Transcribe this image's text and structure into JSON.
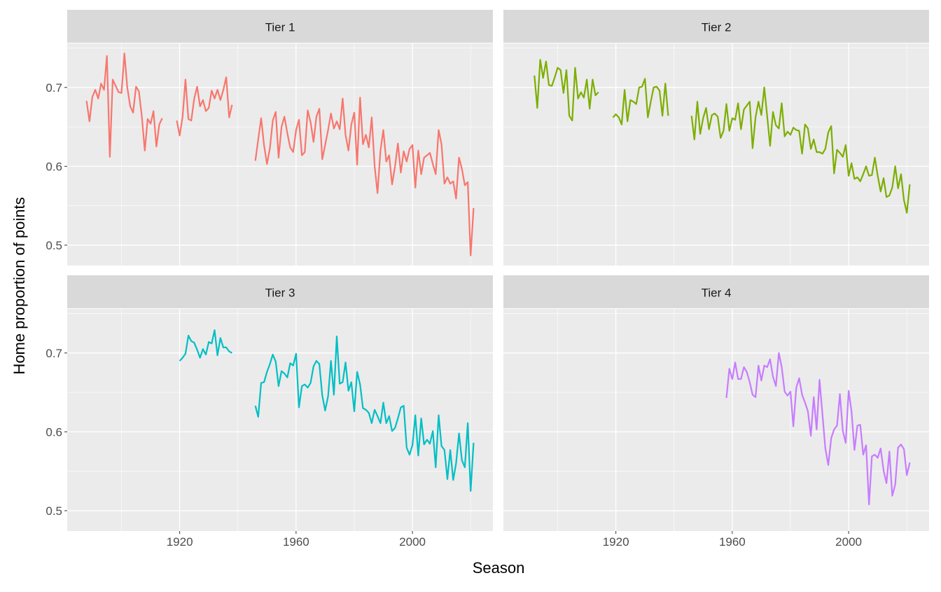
{
  "chart_data": {
    "type": "line",
    "layout": "facet_wrap 2x2",
    "xlabel": "Season",
    "ylabel": "Home proportion of points",
    "x_ticks": [
      1920,
      1960,
      2000
    ],
    "y_ticks": [
      0.5,
      0.6,
      0.7
    ],
    "grid": true,
    "legend": "none",
    "facets": [
      {
        "name": "Tier 1",
        "color": "#F8766D",
        "segments": [
          {
            "start": 1888,
            "values": [
              0.683,
              0.657,
              0.688,
              0.697,
              0.686,
              0.705,
              0.697,
              0.74,
              0.612,
              0.71,
              0.702,
              0.694,
              0.693,
              0.743,
              0.7,
              0.676,
              0.668,
              0.701,
              0.695,
              0.663,
              0.62,
              0.66,
              0.654,
              0.67,
              0.625,
              0.653,
              0.661
            ]
          },
          {
            "start": 1919,
            "values": [
              0.658,
              0.639,
              0.663,
              0.71,
              0.66,
              0.658,
              0.686,
              0.701,
              0.676,
              0.684,
              0.67,
              0.674,
              0.696,
              0.686,
              0.697,
              0.684,
              0.697,
              0.713,
              0.662,
              0.678
            ]
          },
          {
            "start": 1946,
            "values": [
              0.607,
              0.634,
              0.661,
              0.627,
              0.603,
              0.623,
              0.658,
              0.669,
              0.611,
              0.65,
              0.663,
              0.642,
              0.624,
              0.618,
              0.646,
              0.659,
              0.614,
              0.618,
              0.671,
              0.656,
              0.631,
              0.663,
              0.673,
              0.609,
              0.627,
              0.646,
              0.667,
              0.648,
              0.657,
              0.647,
              0.686,
              0.64,
              0.62,
              0.653,
              0.668,
              0.602,
              0.687,
              0.628,
              0.64,
              0.624,
              0.662,
              0.6,
              0.566,
              0.62,
              0.646,
              0.606,
              0.614,
              0.577,
              0.6,
              0.629,
              0.592,
              0.619,
              0.606,
              0.622,
              0.627,
              0.573,
              0.62,
              0.59,
              0.611,
              0.614,
              0.617,
              0.603,
              0.59,
              0.646,
              0.628,
              0.578,
              0.586,
              0.578,
              0.581,
              0.559,
              0.611,
              0.597,
              0.576,
              0.58,
              0.487,
              0.547
            ]
          }
        ]
      },
      {
        "name": "Tier 2",
        "color": "#7CAE00",
        "segments": [
          {
            "start": 1892,
            "values": [
              0.715,
              0.674,
              0.735,
              0.712,
              0.733,
              0.703,
              0.702,
              0.713,
              0.725,
              0.722,
              0.693,
              0.722,
              0.664,
              0.658,
              0.725,
              0.686,
              0.694,
              0.687,
              0.71,
              0.673,
              0.71,
              0.69,
              0.694
            ]
          },
          {
            "start": 1919,
            "values": [
              0.662,
              0.666,
              0.662,
              0.653,
              0.697,
              0.657,
              0.684,
              0.682,
              0.679,
              0.7,
              0.701,
              0.711,
              0.662,
              0.682,
              0.7,
              0.701,
              0.696,
              0.664,
              0.705,
              0.664
            ]
          },
          {
            "start": 1946,
            "values": [
              0.664,
              0.634,
              0.682,
              0.641,
              0.661,
              0.674,
              0.647,
              0.665,
              0.667,
              0.663,
              0.636,
              0.645,
              0.679,
              0.645,
              0.661,
              0.659,
              0.68,
              0.647,
              0.672,
              0.677,
              0.682,
              0.623,
              0.662,
              0.682,
              0.665,
              0.7,
              0.664,
              0.626,
              0.669,
              0.652,
              0.648,
              0.68,
              0.638,
              0.644,
              0.64,
              0.649,
              0.646,
              0.645,
              0.616,
              0.653,
              0.648,
              0.622,
              0.634,
              0.618,
              0.618,
              0.616,
              0.622,
              0.643,
              0.651,
              0.591,
              0.621,
              0.617,
              0.612,
              0.627,
              0.588,
              0.604,
              0.584,
              0.586,
              0.581,
              0.59,
              0.6,
              0.588,
              0.589,
              0.611,
              0.588,
              0.568,
              0.585,
              0.561,
              0.563,
              0.573,
              0.6,
              0.572,
              0.59,
              0.557,
              0.541,
              0.577
            ]
          }
        ]
      },
      {
        "name": "Tier 3",
        "color": "#00BFC4",
        "segments": [
          {
            "start": 1920,
            "values": [
              0.69,
              0.694,
              0.699,
              0.722,
              0.715,
              0.713,
              0.704,
              0.694,
              0.705,
              0.698,
              0.714,
              0.712,
              0.729,
              0.697,
              0.719,
              0.707,
              0.707,
              0.702,
              0.7
            ]
          },
          {
            "start": 1946,
            "values": [
              0.633,
              0.619,
              0.662,
              0.663,
              0.676,
              0.686,
              0.698,
              0.689,
              0.658,
              0.677,
              0.674,
              0.669,
              0.687,
              0.684,
              0.699,
              0.631,
              0.658,
              0.66,
              0.656,
              0.662,
              0.683,
              0.69,
              0.686,
              0.646,
              0.627,
              0.645,
              0.69,
              0.647,
              0.721,
              0.661,
              0.663,
              0.688,
              0.652,
              0.663,
              0.626,
              0.676,
              0.66,
              0.63,
              0.628,
              0.624,
              0.611,
              0.628,
              0.62,
              0.611,
              0.637,
              0.611,
              0.62,
              0.601,
              0.605,
              0.617,
              0.631,
              0.633,
              0.58,
              0.571,
              0.583,
              0.621,
              0.57,
              0.617,
              0.584,
              0.59,
              0.585,
              0.601,
              0.555,
              0.621,
              0.582,
              0.577,
              0.54,
              0.577,
              0.539,
              0.56,
              0.598,
              0.564,
              0.555,
              0.611,
              0.525,
              0.586
            ]
          }
        ]
      },
      {
        "name": "Tier 4",
        "color": "#C77CFF",
        "segments": [
          {
            "start": 1958,
            "values": [
              0.643,
              0.68,
              0.667,
              0.688,
              0.667,
              0.667,
              0.682,
              0.676,
              0.663,
              0.647,
              0.644,
              0.684,
              0.665,
              0.684,
              0.682,
              0.692,
              0.67,
              0.658,
              0.7,
              0.682,
              0.651,
              0.646,
              0.651,
              0.607,
              0.656,
              0.668,
              0.647,
              0.637,
              0.626,
              0.595,
              0.644,
              0.603,
              0.666,
              0.622,
              0.579,
              0.558,
              0.592,
              0.603,
              0.608,
              0.648,
              0.601,
              0.586,
              0.652,
              0.626,
              0.577,
              0.608,
              0.609,
              0.571,
              0.583,
              0.508,
              0.569,
              0.571,
              0.567,
              0.579,
              0.551,
              0.535,
              0.575,
              0.519,
              0.533,
              0.58,
              0.584,
              0.578,
              0.545,
              0.561
            ]
          }
        ]
      }
    ]
  }
}
